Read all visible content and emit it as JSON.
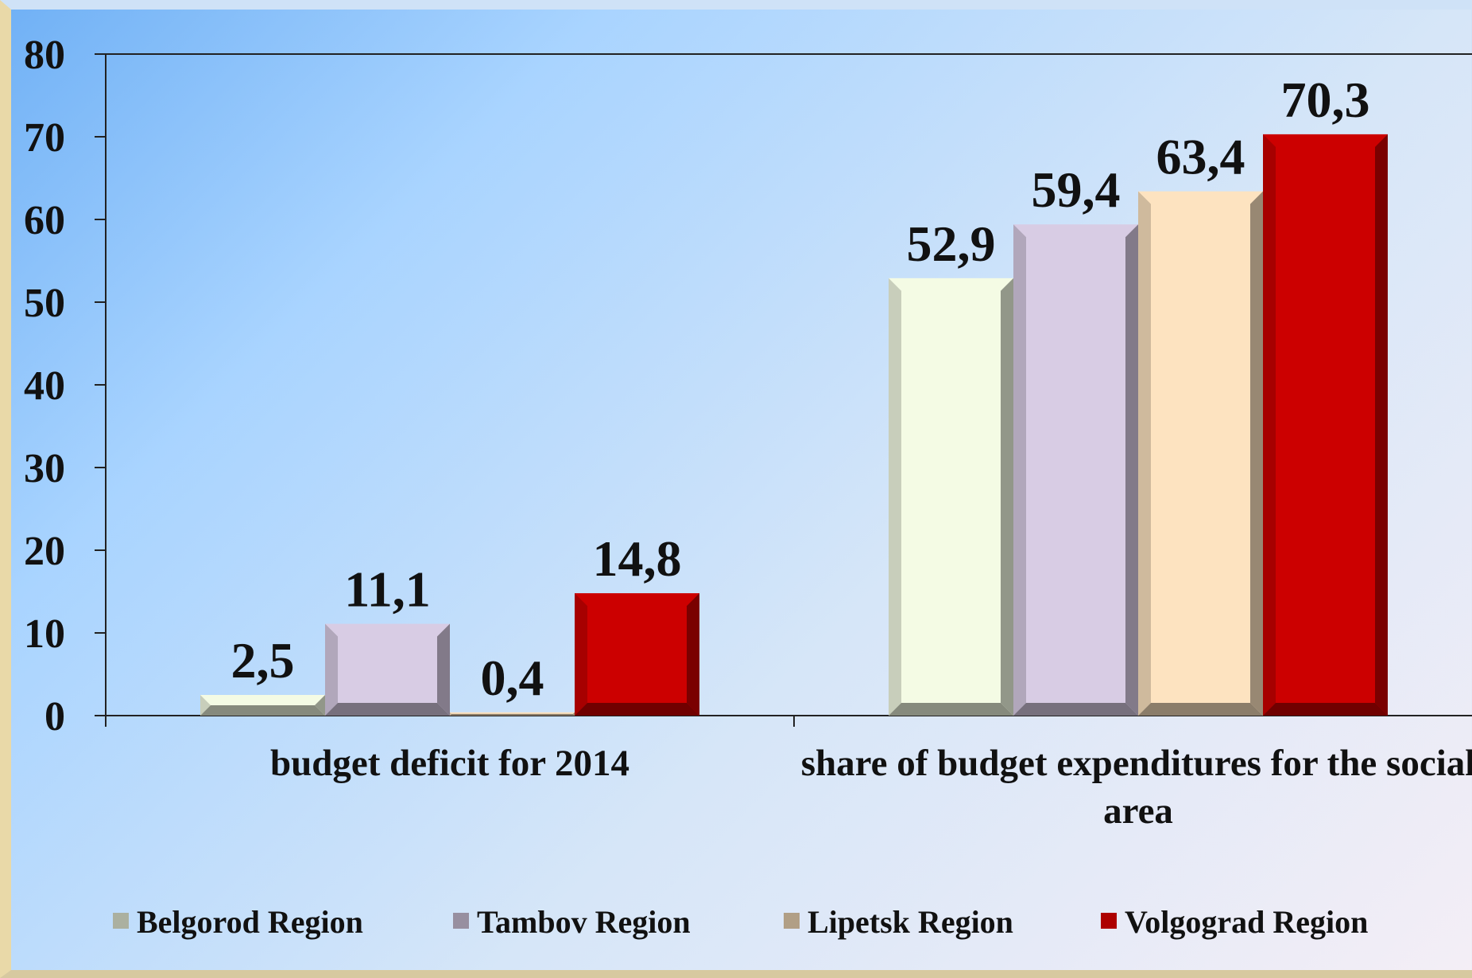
{
  "chart_data": {
    "type": "bar",
    "categories": [
      "budget deficit for 2014",
      "share of budget expenditures for the social area"
    ],
    "series": [
      {
        "name": "Belgorod Region",
        "color": "#f4fbe4",
        "values": [
          2.5,
          52.9
        ],
        "value_labels": [
          "2,5",
          "52,9"
        ]
      },
      {
        "name": "Tambov Region",
        "color": "#d8cce4",
        "values": [
          11.1,
          59.4
        ],
        "value_labels": [
          "11,1",
          "59,4"
        ]
      },
      {
        "name": "Lipetsk Region",
        "color": "#fde3c0",
        "values": [
          0.4,
          63.4
        ],
        "value_labels": [
          "0,4",
          "63,4"
        ]
      },
      {
        "name": "Volgograd Region",
        "color": "#cc0000",
        "values": [
          14.8,
          70.3
        ],
        "value_labels": [
          "14,8",
          "70,3"
        ]
      }
    ],
    "ylim": [
      0,
      80
    ],
    "yticks": [
      0,
      10,
      20,
      30,
      40,
      50,
      60,
      70,
      80
    ]
  }
}
